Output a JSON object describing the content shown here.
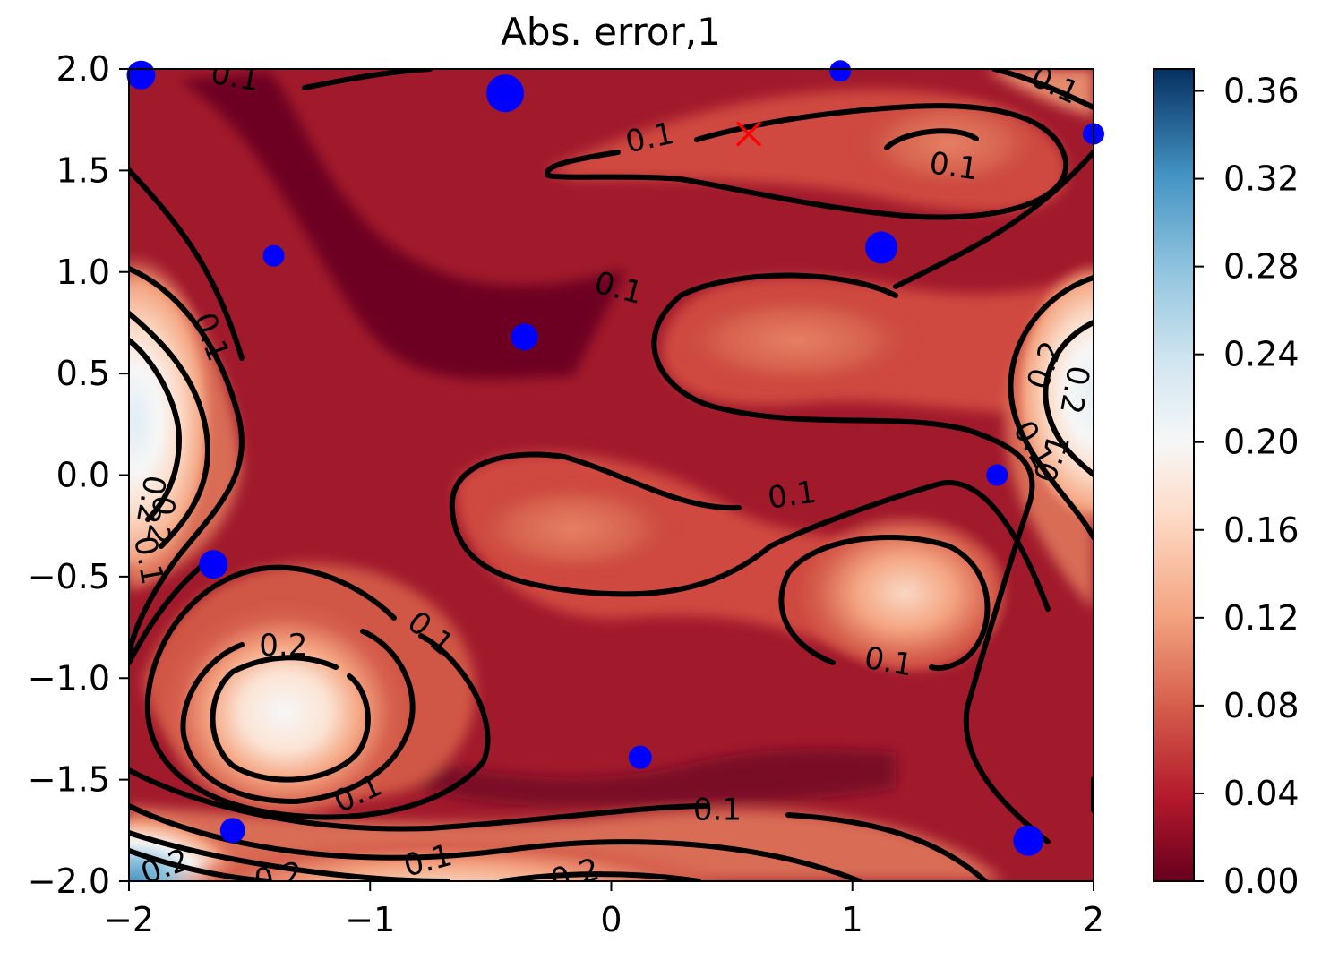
{
  "chart_data": {
    "type": "heatmap",
    "title": "Abs. error,1",
    "xlabel": "",
    "ylabel": "",
    "xlim": [
      -2,
      2
    ],
    "ylim": [
      -2,
      2
    ],
    "x_ticks": [
      -2,
      -1,
      0,
      1,
      2
    ],
    "x_tick_labels": [
      "−2",
      "−1",
      "0",
      "1",
      "2"
    ],
    "y_ticks": [
      -2.0,
      -1.5,
      -1.0,
      -0.5,
      0.0,
      0.5,
      1.0,
      1.5,
      2.0
    ],
    "y_tick_labels": [
      "−2.0",
      "−1.5",
      "−1.0",
      "−0.5",
      "0.0",
      "0.5",
      "1.0",
      "1.5",
      "2.0"
    ],
    "colorbar": {
      "colormap": "RdBu",
      "range": [
        0.0,
        0.37
      ],
      "ticks": [
        0.0,
        0.04,
        0.08,
        0.12,
        0.16,
        0.2,
        0.24,
        0.28,
        0.32,
        0.36
      ],
      "tick_labels": [
        "0.00",
        "0.04",
        "0.08",
        "0.12",
        "0.16",
        "0.20",
        "0.24",
        "0.28",
        "0.32",
        "0.36"
      ]
    },
    "contour_levels": [
      0.1,
      0.2
    ],
    "contour_labels": [
      {
        "text": "0.1",
        "x": -1.56,
        "y": 1.96,
        "angle": 10
      },
      {
        "text": "0.1",
        "x": 0.16,
        "y": 1.66,
        "angle": -12
      },
      {
        "text": "0.1",
        "x": 1.42,
        "y": 1.52,
        "angle": 8
      },
      {
        "text": "0.1",
        "x": 1.84,
        "y": 1.92,
        "angle": 25
      },
      {
        "text": "0.1",
        "x": 0.03,
        "y": 0.92,
        "angle": 15
      },
      {
        "text": "0.1",
        "x": -1.66,
        "y": 0.68,
        "angle": 70
      },
      {
        "text": "0.2",
        "x": 1.8,
        "y": 0.54,
        "angle": -70
      },
      {
        "text": "0.2",
        "x": 1.92,
        "y": 0.42,
        "angle": 100
      },
      {
        "text": "0.1",
        "x": 1.75,
        "y": 0.15,
        "angle": 60
      },
      {
        "text": "0.1",
        "x": 1.83,
        "y": 0.08,
        "angle": -70
      },
      {
        "text": "0.1",
        "x": 0.75,
        "y": -0.1,
        "angle": -8
      },
      {
        "text": "0.2",
        "x": -1.91,
        "y": -0.12,
        "angle": 100
      },
      {
        "text": "0.2",
        "x": -1.87,
        "y": -0.22,
        "angle": 100
      },
      {
        "text": "0.1",
        "x": -1.92,
        "y": -0.42,
        "angle": 80
      },
      {
        "text": "0.1",
        "x": -0.75,
        "y": -0.78,
        "angle": 40
      },
      {
        "text": "0.2",
        "x": -1.36,
        "y": -0.84,
        "angle": 0
      },
      {
        "text": "0.1",
        "x": 1.15,
        "y": -0.92,
        "angle": 10
      },
      {
        "text": "0.1",
        "x": -1.05,
        "y": -1.57,
        "angle": -25
      },
      {
        "text": "0.1",
        "x": 0.44,
        "y": -1.65,
        "angle": 0
      },
      {
        "text": "0.1",
        "x": -0.76,
        "y": -1.9,
        "angle": -15
      },
      {
        "text": "0.2",
        "x": -0.15,
        "y": -1.97,
        "angle": -15
      },
      {
        "text": "0.2",
        "x": -1.38,
        "y": -1.98,
        "angle": -10
      },
      {
        "text": "0.2",
        "x": -1.85,
        "y": -1.93,
        "angle": -20
      }
    ],
    "points": [
      {
        "x": -1.95,
        "y": 1.97,
        "size": 16
      },
      {
        "x": -0.44,
        "y": 1.88,
        "size": 21
      },
      {
        "x": 0.95,
        "y": 1.99,
        "size": 12
      },
      {
        "x": 2.0,
        "y": 1.68,
        "size": 12
      },
      {
        "x": 1.12,
        "y": 1.12,
        "size": 18
      },
      {
        "x": -1.4,
        "y": 1.08,
        "size": 12
      },
      {
        "x": -0.36,
        "y": 0.68,
        "size": 15
      },
      {
        "x": 1.6,
        "y": 0.0,
        "size": 12
      },
      {
        "x": -1.65,
        "y": -0.44,
        "size": 16
      },
      {
        "x": 0.12,
        "y": -1.39,
        "size": 13
      },
      {
        "x": -1.57,
        "y": -1.75,
        "size": 14
      },
      {
        "x": 1.73,
        "y": -1.8,
        "size": 17
      }
    ],
    "marker": {
      "type": "x",
      "x": 0.57,
      "y": 1.68,
      "color": "#ff0000"
    },
    "point_color": "#0000ff"
  }
}
